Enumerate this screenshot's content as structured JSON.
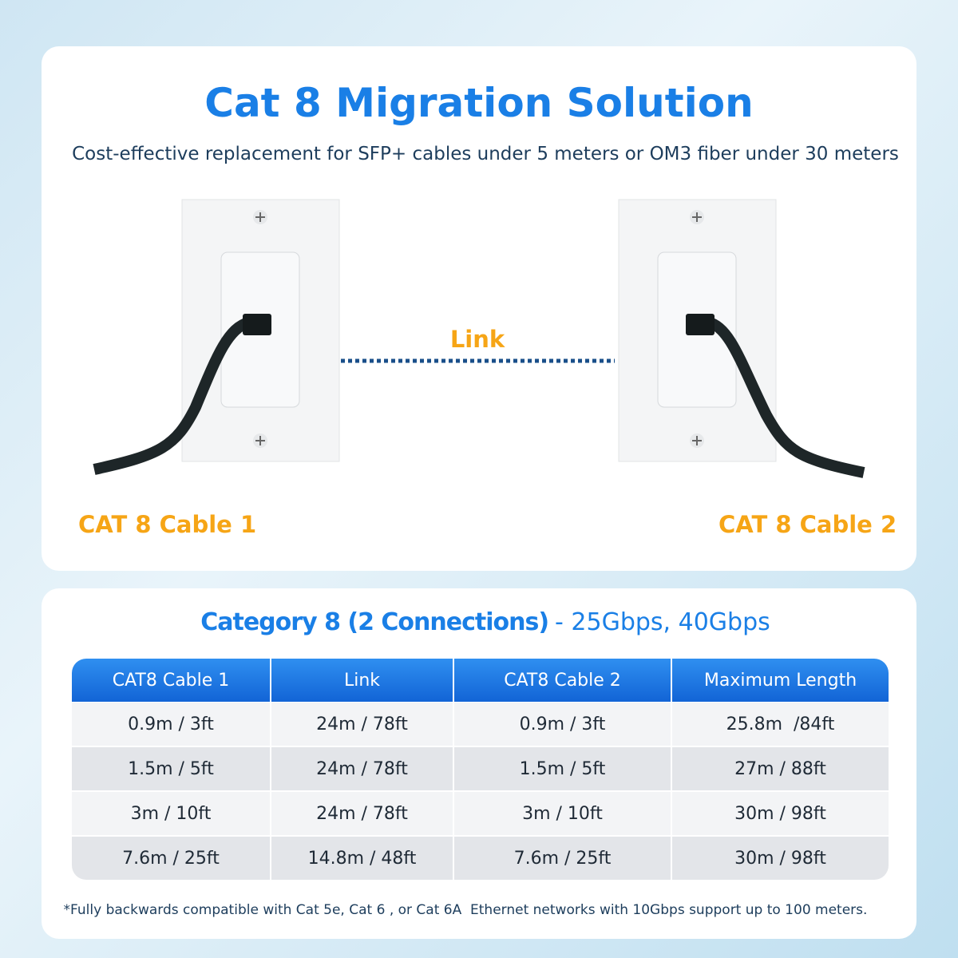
{
  "header": {
    "title": "Cat 8 Migration Solution",
    "subtitle": "Cost-effective replacement for SFP+ cables under 5 meters or OM3 fiber under 30 meters"
  },
  "diagram": {
    "link_label": "Link",
    "left_label": "CAT 8 Cable 1",
    "right_label": "CAT 8 Cable 2"
  },
  "table": {
    "title": [
      "Category 8 (2 Connections)",
      "- 25Gbps, 40Gbps"
    ],
    "columns": [
      "CAT8 Cable 1",
      "Link",
      "CAT8 Cable 2",
      "Maximum Length"
    ],
    "rows": [
      [
        "0.9m / 3ft",
        "24m / 78ft",
        "0.9m / 3ft",
        "25.8m  /84ft"
      ],
      [
        "1.5m / 5ft",
        "24m / 78ft",
        "1.5m / 5ft",
        "27m / 88ft"
      ],
      [
        "3m / 10ft",
        "24m / 78ft",
        "3m / 10ft",
        "30m / 98ft"
      ],
      [
        "7.6m / 25ft",
        "14.8m / 48ft",
        "7.6m / 25ft",
        "30m / 98ft"
      ]
    ]
  },
  "footnote": "*Fully backwards compatible with Cat 5e, Cat 6 , or Cat 6A  Ethernet networks with 10Gbps support up to 100 meters."
}
